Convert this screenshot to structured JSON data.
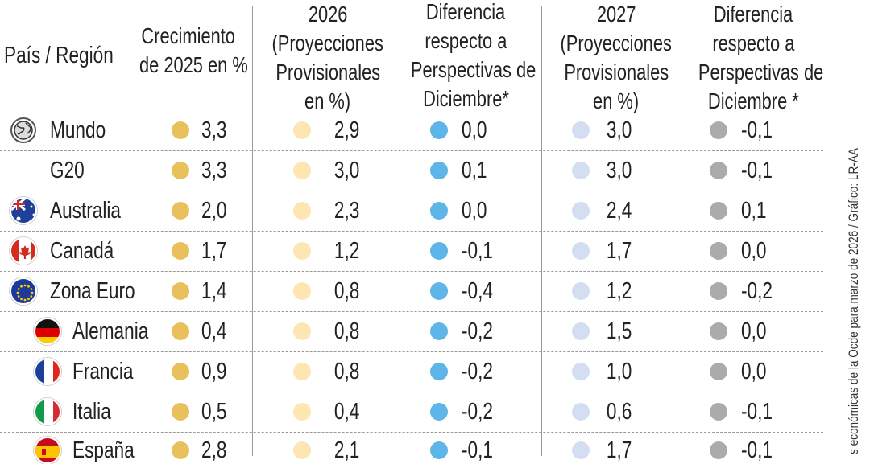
{
  "headers": {
    "country": "País / Región",
    "col1": [
      "Crecimiento",
      "de 2025 en %"
    ],
    "col2": [
      "2026",
      "(Proyecciones",
      "Provisionales",
      "en %)"
    ],
    "col3": [
      "Diferencia",
      "respecto a",
      "Perspectivas de",
      "Diciembre*"
    ],
    "col4": [
      "2027",
      "(Proyecciones",
      "Provisionales",
      "en %)"
    ],
    "col5": [
      "Diferencia",
      "respecto a",
      "Perspectivas de",
      "Diciembre *"
    ]
  },
  "colors": {
    "growth_2025": "#e9c15c",
    "proj_2026": "#fde6b2",
    "diff_2026": "#5db5e8",
    "proj_2027": "#d4def2",
    "diff_2027": "#ababab"
  },
  "source": "s económicas de la Ocde para marzo de 2026 / Gráfico: LR-AA",
  "chart_data": {
    "type": "table",
    "columns": [
      "País / Región",
      "Crecimiento de 2025 en %",
      "2026 (Proyecciones Provisionales en %)",
      "Diferencia respecto a Perspectivas de Diciembre*",
      "2027 (Proyecciones Provisionales en %)",
      "Diferencia respecto a Perspectivas de Diciembre *"
    ],
    "rows": [
      {
        "name": "Mundo",
        "icon": "globe-icon",
        "indent": false,
        "values": [
          "3,3",
          "2,9",
          "0,0",
          "3,0",
          "-0,1"
        ]
      },
      {
        "name": "G20",
        "icon": "",
        "indent": false,
        "values": [
          "3,3",
          "3,0",
          "0,1",
          "3,0",
          "-0,1"
        ]
      },
      {
        "name": "Australia",
        "icon": "australia-flag-icon",
        "indent": false,
        "values": [
          "2,0",
          "2,3",
          "0,0",
          "2,4",
          "0,1"
        ]
      },
      {
        "name": "Canadá",
        "icon": "canada-flag-icon",
        "indent": false,
        "values": [
          "1,7",
          "1,2",
          "-0,1",
          "1,7",
          "0,0"
        ]
      },
      {
        "name": "Zona Euro",
        "icon": "eu-flag-icon",
        "indent": false,
        "values": [
          "1,4",
          "0,8",
          "-0,4",
          "1,2",
          "-0,2"
        ]
      },
      {
        "name": "Alemania",
        "icon": "germany-flag-icon",
        "indent": true,
        "values": [
          "0,4",
          "0,8",
          "-0,2",
          "1,5",
          "0,0"
        ]
      },
      {
        "name": "Francia",
        "icon": "france-flag-icon",
        "indent": true,
        "values": [
          "0,9",
          "0,8",
          "-0,2",
          "1,0",
          "0,0"
        ]
      },
      {
        "name": "Italia",
        "icon": "italy-flag-icon",
        "indent": true,
        "values": [
          "0,5",
          "0,4",
          "-0,2",
          "0,6",
          "-0,1"
        ]
      },
      {
        "name": "España",
        "icon": "spain-flag-icon",
        "indent": true,
        "values": [
          "2,8",
          "2,1",
          "-0,1",
          "1,7",
          "-0,1"
        ]
      }
    ]
  }
}
